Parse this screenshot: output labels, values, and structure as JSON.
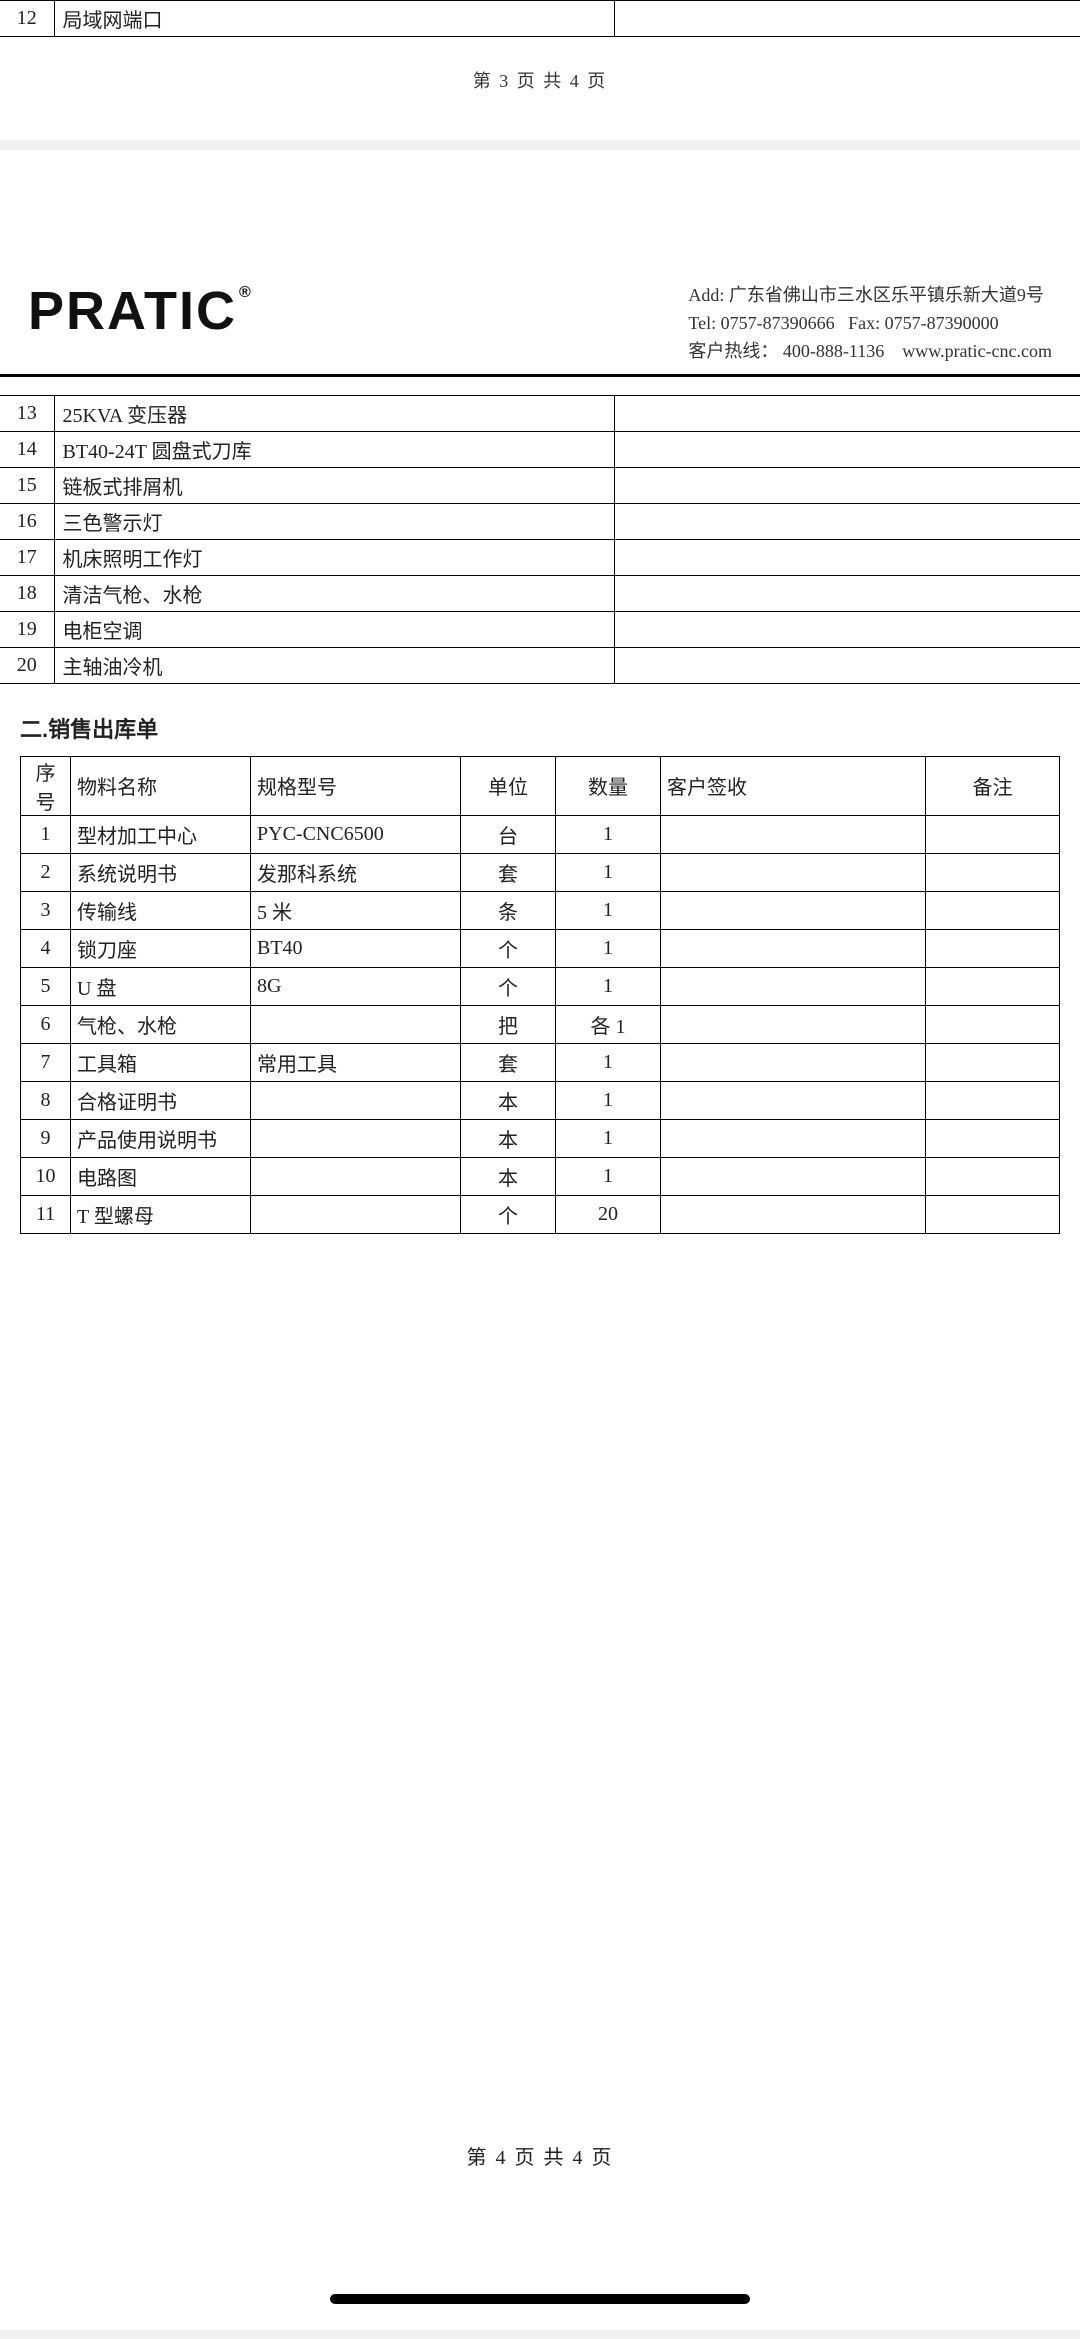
{
  "page3": {
    "row": {
      "num": "12",
      "name": "局域网端口",
      "remark": ""
    },
    "footer": "第 3 页 共 4 页"
  },
  "header": {
    "brand": "PRATIC",
    "reg_mark": "®",
    "addr_label": "Add:",
    "addr": "广东省佛山市三水区乐平镇乐新大道9号",
    "tel_label": "Tel:",
    "tel": "0757-87390666",
    "fax_label": "Fax:",
    "fax": "0757-87390000",
    "hotline_label": "客户热线：",
    "hotline": "400-888-1136",
    "website": "www.pratic-cnc.com"
  },
  "config_rows": [
    {
      "num": "13",
      "name": "25KVA 变压器",
      "remark": ""
    },
    {
      "num": "14",
      "name": "BT40-24T 圆盘式刀库",
      "remark": ""
    },
    {
      "num": "15",
      "name": "链板式排屑机",
      "remark": ""
    },
    {
      "num": "16",
      "name": "三色警示灯",
      "remark": ""
    },
    {
      "num": "17",
      "name": "机床照明工作灯",
      "remark": ""
    },
    {
      "num": "18",
      "name": "清洁气枪、水枪",
      "remark": ""
    },
    {
      "num": "19",
      "name": "电柜空调",
      "remark": ""
    },
    {
      "num": "20",
      "name": "主轴油冷机",
      "remark": ""
    }
  ],
  "section2_title": "二.销售出库单",
  "ship_headers": {
    "h0": "序号",
    "h1": "物料名称",
    "h2": "规格型号",
    "h3": "单位",
    "h4": "数量",
    "h5": "客户签收",
    "h6": "备注"
  },
  "ship_rows": [
    {
      "n": "1",
      "name": "型材加工中心",
      "spec": "PYC-CNC6500",
      "unit": "台",
      "qty": "1",
      "sign": "",
      "remark": ""
    },
    {
      "n": "2",
      "name": "系统说明书",
      "spec": "发那科系统",
      "unit": "套",
      "qty": "1",
      "sign": "",
      "remark": ""
    },
    {
      "n": "3",
      "name": "传输线",
      "spec": "5 米",
      "unit": "条",
      "qty": "1",
      "sign": "",
      "remark": ""
    },
    {
      "n": "4",
      "name": "锁刀座",
      "spec": "BT40",
      "unit": "个",
      "qty": "1",
      "sign": "",
      "remark": ""
    },
    {
      "n": "5",
      "name": "U 盘",
      "spec": "8G",
      "unit": "个",
      "qty": "1",
      "sign": "",
      "remark": ""
    },
    {
      "n": "6",
      "name": "气枪、水枪",
      "spec": "",
      "unit": "把",
      "qty": "各 1",
      "sign": "",
      "remark": ""
    },
    {
      "n": "7",
      "name": "工具箱",
      "spec": "常用工具",
      "unit": "套",
      "qty": "1",
      "sign": "",
      "remark": ""
    },
    {
      "n": "8",
      "name": "合格证明书",
      "spec": "",
      "unit": "本",
      "qty": "1",
      "sign": "",
      "remark": ""
    },
    {
      "n": "9",
      "name": "产品使用说明书",
      "spec": "",
      "unit": "本",
      "qty": "1",
      "sign": "",
      "remark": ""
    },
    {
      "n": "10",
      "name": "电路图",
      "spec": "",
      "unit": "本",
      "qty": "1",
      "sign": "",
      "remark": ""
    },
    {
      "n": "11",
      "name": "T 型螺母",
      "spec": "",
      "unit": "个",
      "qty": "20",
      "sign": "",
      "remark": ""
    }
  ],
  "page4_footer": "第 4 页 共 4 页"
}
